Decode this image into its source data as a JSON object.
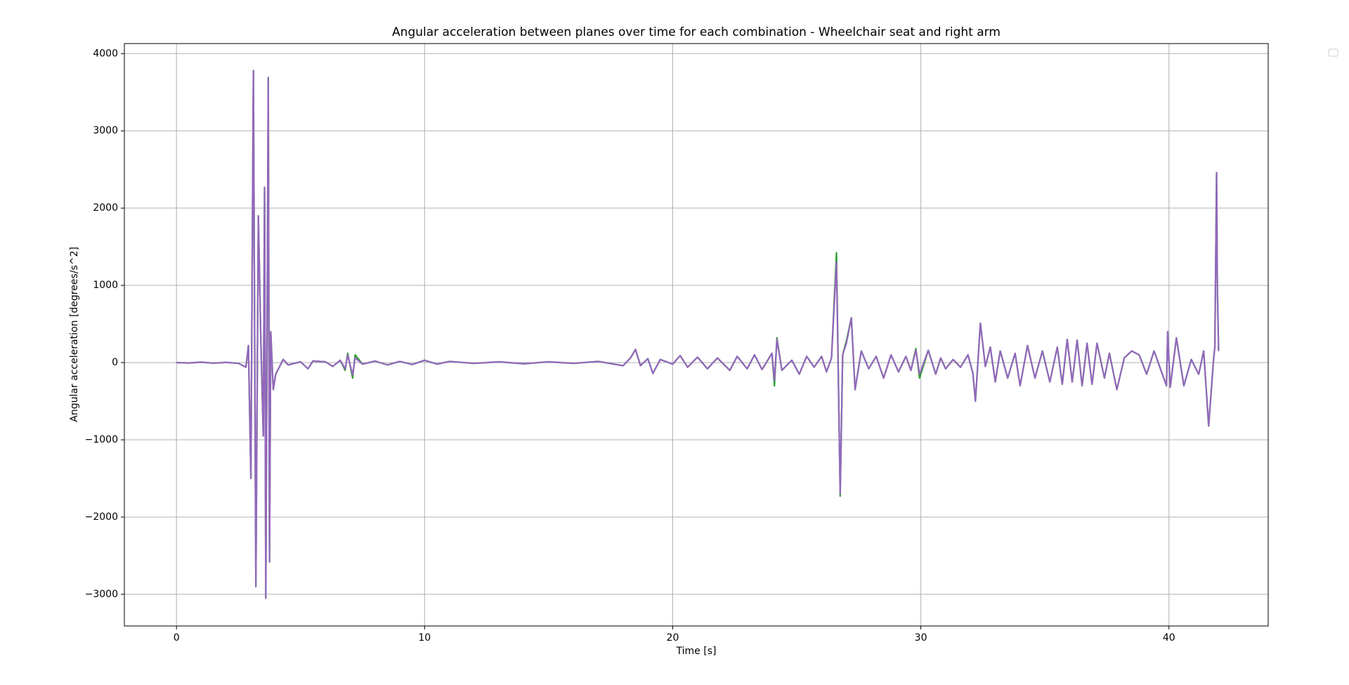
{
  "chart_data": {
    "type": "line",
    "title": "Angular acceleration between planes over time for each combination - Wheelchair seat and right arm",
    "xlabel": "Time [s]",
    "ylabel": "Angular acceleration [degrees/s^2]",
    "xlim": [
      -2.1,
      44.0
    ],
    "ylim": [
      -3410,
      4130
    ],
    "xticks": [
      0,
      10,
      20,
      30,
      40
    ],
    "yticks": [
      {
        "value": -3000,
        "label": "−3000"
      },
      {
        "value": -2000,
        "label": "−2000"
      },
      {
        "value": -1000,
        "label": "−1000"
      },
      0,
      1000,
      2000,
      3000,
      4000
    ],
    "grid": true,
    "x": [
      0,
      0.5,
      1,
      1.5,
      2,
      2.5,
      2.8,
      2.9,
      3.0,
      3.1,
      3.2,
      3.3,
      3.4,
      3.5,
      3.55,
      3.6,
      3.7,
      3.75,
      3.8,
      3.9,
      4.0,
      4.3,
      4.5,
      5,
      5.3,
      5.5,
      6,
      6.3,
      6.6,
      6.8,
      6.9,
      7.1,
      7.2,
      7.5,
      8,
      8.5,
      9,
      9.5,
      10,
      10.5,
      11,
      12,
      13,
      14,
      15,
      16,
      17,
      18,
      18.3,
      18.5,
      18.7,
      19,
      19.2,
      19.5,
      20,
      20.3,
      20.6,
      21,
      21.4,
      21.8,
      22.3,
      22.6,
      23,
      23.3,
      23.6,
      24.0,
      24.1,
      24.2,
      24.4,
      24.8,
      25.1,
      25.4,
      25.7,
      26.0,
      26.2,
      26.4,
      26.6,
      26.75,
      26.85,
      27.0,
      27.2,
      27.35,
      27.6,
      27.9,
      28.2,
      28.5,
      28.8,
      29.1,
      29.4,
      29.6,
      29.8,
      29.95,
      30.3,
      30.6,
      30.8,
      31.0,
      31.3,
      31.6,
      31.9,
      32.1,
      32.2,
      32.4,
      32.6,
      32.8,
      33.0,
      33.2,
      33.5,
      33.8,
      34.0,
      34.3,
      34.6,
      34.9,
      35.2,
      35.5,
      35.7,
      35.9,
      36.1,
      36.3,
      36.5,
      36.7,
      36.9,
      37.1,
      37.4,
      37.6,
      37.9,
      38.2,
      38.5,
      38.8,
      39.1,
      39.4,
      39.7,
      39.9,
      39.95,
      40.05,
      40.3,
      40.6,
      40.9,
      41.2,
      41.4,
      41.6,
      41.8,
      41.85,
      41.92,
      41.95,
      42.0
    ],
    "series": [
      {
        "color": "#2ca02c",
        "values": [
          0,
          -5,
          5,
          -8,
          3,
          -10,
          -60,
          220,
          -1500,
          3780,
          -2900,
          1900,
          300,
          -950,
          2270,
          -3050,
          3690,
          -2580,
          400,
          -350,
          -150,
          40,
          -30,
          10,
          -80,
          20,
          10,
          -50,
          30,
          -100,
          120,
          -200,
          100,
          -20,
          20,
          -30,
          15,
          -25,
          30,
          -20,
          15,
          -10,
          10,
          -15,
          10,
          -10,
          15,
          -40,
          60,
          170,
          -40,
          50,
          -140,
          40,
          -20,
          90,
          -60,
          70,
          -80,
          60,
          -100,
          80,
          -80,
          100,
          -90,
          120,
          -300,
          320,
          -100,
          30,
          -150,
          80,
          -60,
          80,
          -120,
          60,
          1420,
          -1730,
          100,
          280,
          580,
          -350,
          150,
          -80,
          80,
          -200,
          100,
          -120,
          80,
          -100,
          180,
          -200,
          160,
          -150,
          60,
          -80,
          40,
          -60,
          100,
          -140,
          -500,
          510,
          -50,
          200,
          -250,
          150,
          -200,
          120,
          -300,
          220,
          -200,
          150,
          -250,
          200,
          -280,
          300,
          -250,
          290,
          -300,
          250,
          -280,
          250,
          -200,
          120,
          -350,
          60,
          150,
          100,
          -150,
          150,
          -120,
          -300,
          400,
          -320,
          320,
          -300,
          40,
          -150,
          150,
          -820,
          50,
          200,
          2460,
          1000,
          150
        ]
      },
      {
        "color": "#9467bd",
        "values": [
          0,
          -5,
          5,
          -8,
          3,
          -10,
          -60,
          220,
          -1500,
          3780,
          -2900,
          1900,
          300,
          -950,
          2270,
          -3050,
          3690,
          -2580,
          400,
          -350,
          -150,
          40,
          -30,
          10,
          -80,
          20,
          10,
          -50,
          30,
          -80,
          100,
          -160,
          60,
          -20,
          20,
          -30,
          15,
          -25,
          30,
          -20,
          15,
          -10,
          10,
          -15,
          10,
          -10,
          15,
          -40,
          60,
          170,
          -40,
          50,
          -140,
          40,
          -20,
          90,
          -60,
          70,
          -80,
          60,
          -100,
          80,
          -80,
          100,
          -90,
          120,
          -230,
          300,
          -100,
          30,
          -150,
          80,
          -60,
          80,
          -120,
          60,
          1300,
          -1700,
          100,
          250,
          580,
          -350,
          150,
          -80,
          80,
          -200,
          100,
          -120,
          80,
          -100,
          160,
          -150,
          160,
          -150,
          60,
          -80,
          40,
          -60,
          100,
          -140,
          -500,
          510,
          -50,
          200,
          -250,
          150,
          -200,
          120,
          -300,
          220,
          -200,
          150,
          -250,
          200,
          -280,
          300,
          -250,
          290,
          -300,
          250,
          -280,
          250,
          -200,
          120,
          -350,
          60,
          150,
          100,
          -150,
          150,
          -120,
          -300,
          400,
          -320,
          320,
          -300,
          40,
          -150,
          150,
          -820,
          50,
          200,
          2460,
          1000,
          150
        ]
      }
    ]
  }
}
